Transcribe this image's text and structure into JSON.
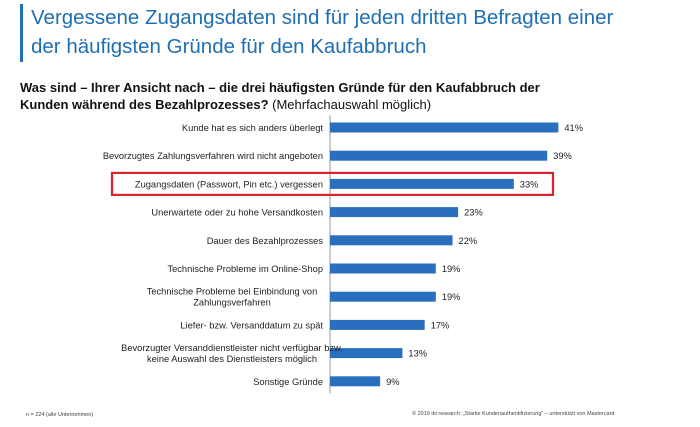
{
  "header": {
    "title_line1": "Vergessene Zugangsdaten sind für jeden dritten Befragten einer",
    "title_line2": "der häufigsten Gründe für den Kaufabbruch"
  },
  "question": {
    "bold_line1": "Was sind – Ihrer Ansicht nach – die drei häufigsten Gründe für den Kaufabbruch der",
    "bold_line2": "Kunden während des Bezahlprozesses?",
    "note": " (Mehrfachauswahl möglich)"
  },
  "footer": {
    "sample": "n = 224 (alle Unternehmen)",
    "source": "© 2019 ibi research: „Starke Kundenauthentifizierung“ – unterstützt von Mastercard"
  },
  "colors": {
    "title": "#1f6fb5",
    "bar": "#2a6fbd",
    "highlight": "#d9232d"
  },
  "chart_data": {
    "type": "bar",
    "orientation": "horizontal",
    "categories": [
      [
        "Kunde hat es sich anders überlegt"
      ],
      [
        "Bevorzugtes Zahlungsverfahren wird nicht angeboten"
      ],
      [
        "Zugangsdaten (Passwort, Pin etc.) vergessen"
      ],
      [
        "Unerwartete oder zu hohe Versandkosten"
      ],
      [
        "Dauer des Bezahlprozesses"
      ],
      [
        "Technische Probleme im Online-Shop"
      ],
      [
        "Technische Probleme bei Einbindung von",
        "Zahlungsverfahren"
      ],
      [
        "Liefer- bzw. Versanddatum zu spät"
      ],
      [
        "Bevorzugter Versanddienstleister nicht verfügbar bzw.",
        "keine Auswahl des Dienstleisters möglich"
      ],
      [
        "Sonstige Gründe"
      ]
    ],
    "values": [
      41,
      39,
      33,
      23,
      22,
      19,
      19,
      17,
      13,
      9
    ],
    "value_labels": [
      "41%",
      "39%",
      "33%",
      "23%",
      "22%",
      "19%",
      "19%",
      "17%",
      "13%",
      "9%"
    ],
    "highlighted_index": 2,
    "unit": "%",
    "grid": false
  }
}
